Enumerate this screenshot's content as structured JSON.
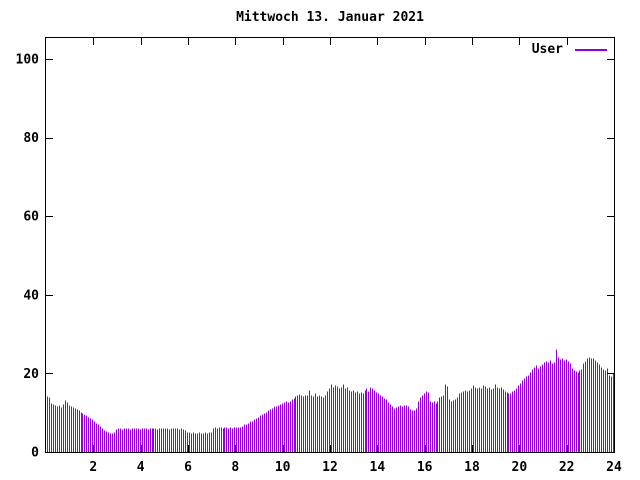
{
  "window": {
    "background": "#ffffff",
    "foreground": "#000000"
  },
  "chart_data": {
    "type": "bar",
    "title": "Mittwoch 13. Januar 2021",
    "xlabel": "",
    "ylabel": "",
    "x_unit": "hour of day",
    "x_range": [
      0,
      24
    ],
    "y_range": [
      0,
      105
    ],
    "xticks": [
      2,
      4,
      6,
      8,
      10,
      12,
      14,
      16,
      18,
      20,
      22,
      24
    ],
    "yticks": [
      0,
      20,
      40,
      60,
      80,
      100
    ],
    "grid": false,
    "legend_position": "top-right-inside",
    "legend": [
      {
        "name": "User",
        "color": "#9400D3",
        "style": "impulses"
      }
    ],
    "x_start_hour": 0,
    "x_step_minutes": 5,
    "values": [
      14.2,
      14.0,
      12.5,
      12.2,
      12.0,
      11.8,
      12.0,
      11.5,
      12.2,
      13.2,
      12.6,
      12.0,
      11.8,
      11.5,
      11.2,
      11.0,
      10.6,
      10.3,
      10.0,
      9.7,
      9.4,
      9.0,
      8.7,
      8.4,
      8.0,
      7.5,
      7.0,
      6.5,
      6.1,
      5.7,
      5.3,
      5.0,
      4.9,
      4.8,
      5.2,
      5.8,
      6.0,
      6.0,
      5.9,
      6.0,
      6.1,
      6.0,
      5.9,
      6.0,
      6.0,
      6.1,
      6.0,
      5.9,
      6.0,
      6.0,
      6.1,
      5.9,
      6.0,
      6.0,
      6.1,
      6.0,
      5.9,
      6.0,
      6.0,
      6.0,
      6.1,
      6.0,
      5.9,
      6.0,
      6.0,
      6.1,
      6.0,
      5.9,
      6.0,
      5.8,
      5.5,
      5.2,
      5.0,
      4.9,
      5.0,
      4.8,
      4.9,
      5.0,
      4.8,
      4.9,
      5.0,
      4.9,
      5.0,
      5.2,
      6.2,
      6.3,
      6.2,
      6.4,
      6.3,
      6.2,
      6.3,
      6.4,
      6.2,
      6.3,
      6.2,
      6.3,
      6.3,
      6.4,
      6.3,
      6.5,
      7.0,
      7.2,
      7.5,
      7.8,
      8.0,
      8.3,
      8.6,
      9.0,
      9.3,
      9.6,
      10.0,
      10.3,
      10.6,
      11.0,
      11.3,
      11.6,
      11.8,
      12.0,
      12.2,
      12.4,
      12.6,
      12.9,
      12.6,
      13.0,
      13.4,
      13.8,
      14.2,
      14.5,
      14.8,
      14.5,
      14.3,
      14.6,
      14.5,
      15.8,
      14.4,
      14.3,
      15.1,
      14.2,
      14.4,
      14.3,
      14.0,
      14.4,
      15.5,
      16.2,
      17.3,
      16.5,
      17.1,
      16.8,
      16.3,
      16.5,
      17.3,
      16.4,
      16.6,
      15.9,
      15.4,
      15.8,
      15.2,
      15.5,
      15.0,
      15.3,
      15.1,
      15.8,
      16.2,
      15.6,
      16.6,
      16.4,
      15.8,
      15.3,
      14.9,
      14.5,
      14.2,
      13.8,
      13.4,
      12.8,
      12.2,
      11.8,
      11.2,
      11.5,
      11.7,
      12.0,
      11.8,
      12.0,
      11.9,
      11.7,
      11.0,
      10.7,
      10.8,
      11.2,
      13.0,
      14.0,
      14.5,
      15.0,
      15.5,
      15.2,
      13.1,
      12.6,
      12.9,
      12.5,
      13.0,
      14.0,
      14.3,
      14.6,
      17.2,
      16.8,
      13.6,
      12.9,
      13.2,
      13.6,
      13.9,
      14.9,
      15.2,
      15.5,
      15.8,
      15.5,
      15.8,
      16.2,
      17.0,
      16.5,
      16.3,
      16.6,
      16.4,
      17.0,
      16.8,
      16.3,
      16.6,
      16.0,
      16.4,
      17.2,
      16.6,
      16.2,
      16.5,
      16.0,
      15.5,
      15.2,
      14.9,
      15.1,
      15.4,
      15.8,
      16.3,
      17.0,
      17.6,
      18.2,
      18.8,
      19.3,
      19.7,
      20.4,
      21.0,
      21.6,
      22.2,
      21.4,
      21.9,
      22.4,
      22.8,
      23.1,
      22.8,
      23.3,
      22.6,
      23.0,
      26.1,
      24.3,
      23.6,
      23.9,
      23.3,
      23.6,
      23.2,
      22.6,
      21.3,
      20.9,
      20.6,
      20.4,
      20.8,
      21.1,
      22.6,
      23.2,
      23.9,
      24.2,
      23.8,
      24.0,
      23.5,
      23.0,
      22.5,
      21.7,
      21.0,
      20.9,
      21.3,
      19.6,
      19.3,
      20.1
    ]
  }
}
